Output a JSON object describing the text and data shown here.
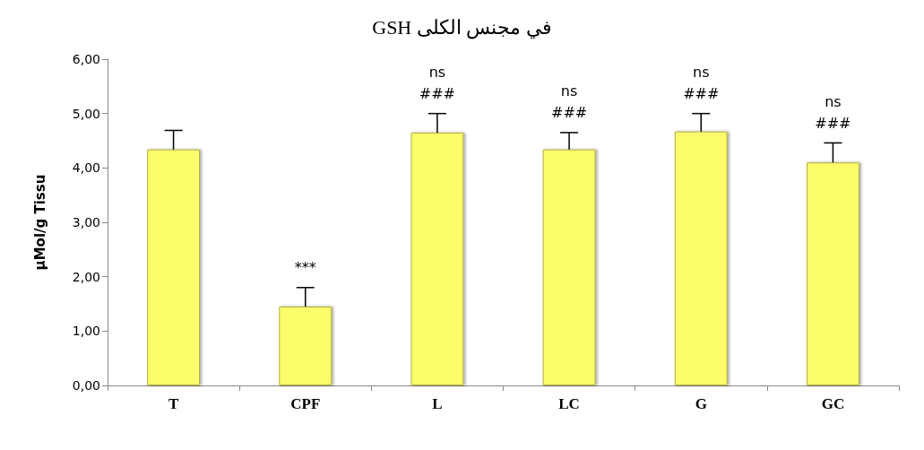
{
  "chart_data": {
    "type": "bar",
    "title": "GSH في مجنس الكلى",
    "ylabel": "µMol/g Tissu",
    "categories": [
      "T",
      "CPF",
      "L",
      "LC",
      "G",
      "GC"
    ],
    "values": [
      4.34,
      1.45,
      4.65,
      4.34,
      4.67,
      4.1
    ],
    "errors": [
      [
        4.34,
        4.69
      ],
      [
        1.45,
        1.8
      ],
      [
        4.65,
        5.0
      ],
      [
        4.34,
        4.65
      ],
      [
        4.67,
        5.0
      ],
      [
        4.1,
        4.46
      ]
    ],
    "color": "#fdfd6c",
    "ylim": [
      0,
      6
    ],
    "yticks": [
      {
        "value": 0,
        "label": "0,00"
      },
      {
        "value": 1,
        "label": "1,00"
      },
      {
        "value": 2,
        "label": "2,00"
      },
      {
        "value": 3,
        "label": "3,00"
      },
      {
        "value": 4,
        "label": "4,00"
      },
      {
        "value": 5,
        "label": "5,00"
      },
      {
        "value": 6,
        "label": "6,00"
      }
    ],
    "grid": false,
    "annotations": [
      {
        "text": "***",
        "x": "CPF",
        "y": 1.45
      },
      {
        "text": "ns\n###",
        "x": "L",
        "y": 4.65
      },
      {
        "text": "ns\n###",
        "x": "LC",
        "y": 4.34
      },
      {
        "text": "ns\n###",
        "x": "G",
        "y": 4.67
      },
      {
        "text": "ns\n###",
        "x": "GC",
        "y": 4.1
      }
    ]
  }
}
